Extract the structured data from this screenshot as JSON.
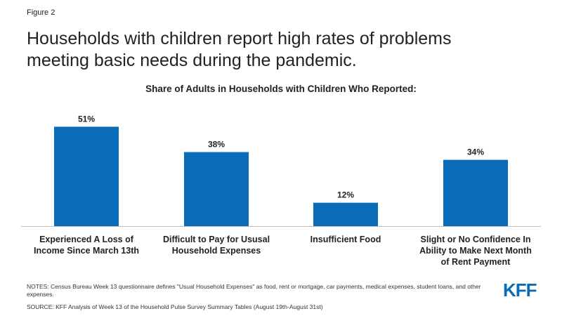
{
  "figure_label": "Figure 2",
  "headline": "Households with children report high rates of problems meeting basic needs during the pandemic.",
  "notes": "NOTES: Census Bureau Week 13 questionnaire defines \"Usual Household Expenses\" as food, rent or mortgage, car payments, medical expenses, student loans, and other expenses.",
  "source": "SOURCE: KFF Analysis of Week 13 of the Household Pulse Survey Summary Tables (August 19th-August 31st)",
  "logo_text": "KFF",
  "colors": {
    "bar": "#0a6cb7",
    "axis": "#bfbfbf",
    "text": "#222222"
  },
  "chart_data": {
    "type": "bar",
    "title": "Share of Adults in Households with Children Who Reported:",
    "xlabel": "",
    "ylabel": "",
    "ylim": [
      0,
      100
    ],
    "grid": false,
    "categories": [
      [
        "Experienced A Loss of",
        "Income Since March 13th"
      ],
      [
        "Difficult to Pay for Ususal",
        "Household Expenses"
      ],
      [
        "Insufficient Food"
      ],
      [
        "Slight or No Confidence In",
        "Ability to Make Next Month",
        "of Rent Payment"
      ]
    ],
    "values": [
      51,
      38,
      12,
      34
    ],
    "data_labels": [
      "51%",
      "38%",
      "12%",
      "34%"
    ]
  }
}
